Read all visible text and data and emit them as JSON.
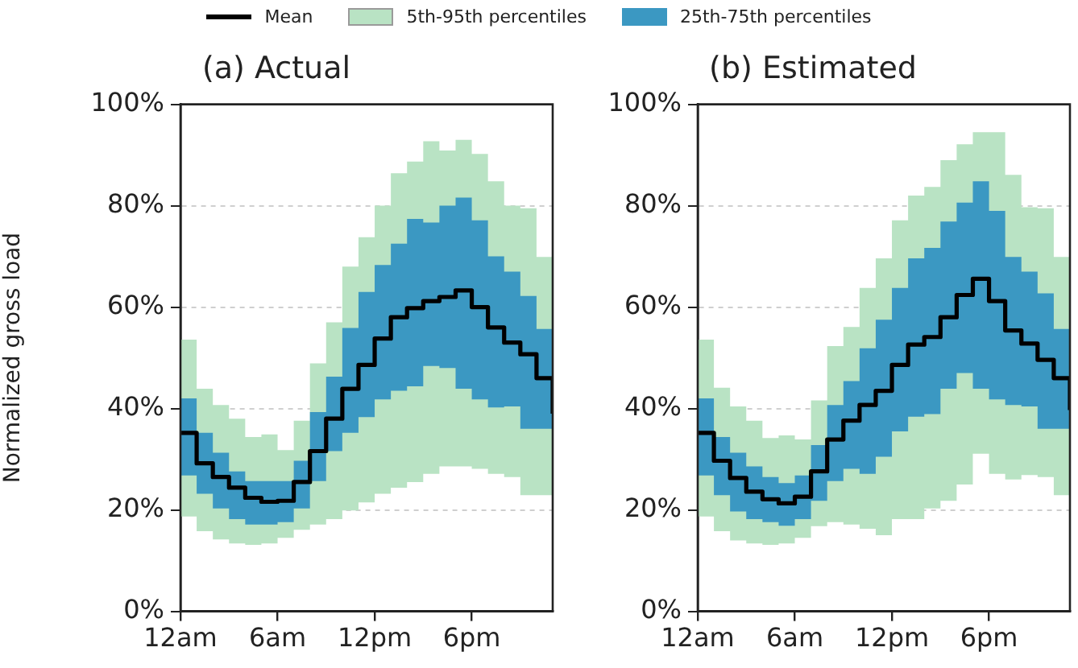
{
  "chart_data": [
    {
      "type": "step",
      "title": "(a) Actual",
      "ylabel": "Normalized gross load",
      "legend": "top",
      "grid": "y",
      "x": [
        "--01-01T00:00",
        "--01-01T01:00",
        "--01-01T02:00",
        "--01-01T03:00",
        "--01-01T04:00",
        "--01-01T05:00",
        "--01-01T06:00",
        "--01-01T07:00",
        "--01-01T08:00",
        "--01-01T09:00",
        "--01-01T10:00",
        "--01-01T11:00",
        "--01-01T12:00",
        "--01-01T13:00",
        "--01-01T14:00",
        "--01-01T15:00",
        "--01-01T16:00",
        "--01-01T17:00",
        "--01-01T18:00",
        "--01-01T19:00",
        "--01-01T20:00",
        "--01-01T21:00",
        "--01-01T22:00",
        "--01-01T23:00"
      ],
      "xlim": [
        "--01-01T00:00",
        "--01-01T23:00"
      ],
      "xticks": [
        {
          "value": "--01-01T00:00",
          "label": "12am"
        },
        {
          "value": "--01-01T06:00",
          "label": "6am"
        },
        {
          "value": "--01-01T12:00",
          "label": "12pm"
        },
        {
          "value": "--01-01T18:00",
          "label": "6pm"
        }
      ],
      "ylim": [
        0,
        100
      ],
      "yticks": [
        {
          "value": 0,
          "label": "0%"
        },
        {
          "value": 20,
          "label": "20%"
        },
        {
          "value": 40,
          "label": "40%"
        },
        {
          "value": 60,
          "label": "60%"
        },
        {
          "value": 80,
          "label": "80%"
        },
        {
          "value": 100,
          "label": "100%"
        }
      ],
      "series": [
        {
          "name": "5th-95th percentiles",
          "type": "area",
          "color": "#b9e3c4",
          "values": [
            null,
            null,
            null,
            null,
            null,
            null,
            null,
            null,
            null,
            null,
            null,
            null,
            null,
            null,
            null,
            null,
            null,
            null,
            null,
            null,
            null,
            null,
            null,
            null
          ],
          "lower": [
            18.7,
            15.8,
            14.2,
            13.4,
            13.1,
            13.4,
            14.5,
            16.1,
            17.1,
            18.2,
            19.9,
            21.5,
            23.2,
            24.4,
            25.5,
            27.1,
            28.6,
            28.6,
            28.1,
            27.1,
            26.5,
            22.9,
            22.9,
            22.9
          ],
          "upper": [
            53.6,
            43.9,
            40.7,
            38,
            34.4,
            34.9,
            31.8,
            37.6,
            48.9,
            57,
            68,
            73.8,
            80,
            86.4,
            88.7,
            92.7,
            90.9,
            93,
            90.2,
            84.8,
            80,
            79.5,
            69.9,
            69.9
          ]
        },
        {
          "name": "25th-75th percentiles",
          "type": "area",
          "color": "#3b98c2",
          "values": [
            null,
            null,
            null,
            null,
            null,
            null,
            null,
            null,
            null,
            null,
            null,
            null,
            null,
            null,
            null,
            null,
            null,
            null,
            null,
            null,
            null,
            null,
            null,
            null
          ],
          "lower": [
            26.8,
            23.2,
            20.3,
            18.2,
            17.1,
            17.1,
            17.6,
            20.3,
            25.7,
            31.6,
            35.2,
            38.3,
            41.8,
            43.5,
            44.4,
            48.4,
            48,
            43.9,
            41.8,
            40.2,
            40.4,
            36,
            36,
            36
          ],
          "upper": [
            42,
            35.2,
            31.3,
            27.6,
            25.7,
            25.7,
            25.7,
            29.7,
            39.3,
            46.3,
            55.9,
            63,
            68.3,
            72.5,
            77.4,
            76.7,
            80,
            81.6,
            77.1,
            70,
            67,
            62.2,
            55.7,
            55.7
          ]
        },
        {
          "name": "Mean",
          "color": "#000000",
          "values": [
            35.2,
            29.2,
            26.5,
            24.4,
            22.4,
            21.6,
            21.8,
            25.5,
            31.6,
            38,
            43.9,
            48.6,
            53.8,
            58,
            59.8,
            61.2,
            62,
            63.3,
            60,
            56,
            53,
            50.7,
            46,
            39
          ]
        }
      ]
    },
    {
      "type": "step",
      "title": "(b) Estimated",
      "grid": "y",
      "x": [
        "--01-01T00:00",
        "--01-01T01:00",
        "--01-01T02:00",
        "--01-01T03:00",
        "--01-01T04:00",
        "--01-01T05:00",
        "--01-01T06:00",
        "--01-01T07:00",
        "--01-01T08:00",
        "--01-01T09:00",
        "--01-01T10:00",
        "--01-01T11:00",
        "--01-01T12:00",
        "--01-01T13:00",
        "--01-01T14:00",
        "--01-01T15:00",
        "--01-01T16:00",
        "--01-01T17:00",
        "--01-01T18:00",
        "--01-01T19:00",
        "--01-01T20:00",
        "--01-01T21:00",
        "--01-01T22:00",
        "--01-01T23:00"
      ],
      "xlim": [
        "--01-01T00:00",
        "--01-01T23:00"
      ],
      "xticks": [
        {
          "value": "--01-01T00:00",
          "label": "12am"
        },
        {
          "value": "--01-01T06:00",
          "label": "6am"
        },
        {
          "value": "--01-01T12:00",
          "label": "12pm"
        },
        {
          "value": "--01-01T18:00",
          "label": "6pm"
        }
      ],
      "ylim": [
        0,
        100
      ],
      "yticks": [
        {
          "value": 0,
          "label": "0%"
        },
        {
          "value": 20,
          "label": "20%"
        },
        {
          "value": 40,
          "label": "40%"
        },
        {
          "value": 60,
          "label": "60%"
        },
        {
          "value": 80,
          "label": "80%"
        },
        {
          "value": 100,
          "label": "100%"
        }
      ],
      "series": [
        {
          "type": "area",
          "color": "#b9e3c4",
          "values": [
            null,
            null,
            null,
            null,
            null,
            null,
            null,
            null,
            null,
            null,
            null,
            null,
            null,
            null,
            null,
            null,
            null,
            null,
            null,
            null,
            null,
            null,
            null,
            null
          ],
          "lower": [
            18.7,
            15.8,
            14,
            13.4,
            13.1,
            13.4,
            14.5,
            16.8,
            17.6,
            17.1,
            16.3,
            15,
            18.2,
            18.2,
            20.3,
            21.8,
            25,
            31.1,
            27.1,
            26,
            26.9,
            26.5,
            22.9,
            22.9
          ],
          "upper": [
            53.6,
            44.1,
            40.4,
            37.6,
            34.2,
            34.7,
            33.9,
            41.6,
            52.3,
            56.1,
            63.8,
            69.6,
            77.1,
            82,
            83.7,
            89,
            92.1,
            94.5,
            94.5,
            86.1,
            79.7,
            79.5,
            69.9,
            69.9
          ]
        },
        {
          "type": "area",
          "color": "#3b98c2",
          "values": [
            null,
            null,
            null,
            null,
            null,
            null,
            null,
            null,
            null,
            null,
            null,
            null,
            null,
            null,
            null,
            null,
            null,
            null,
            null,
            null,
            null,
            null,
            null,
            null
          ],
          "lower": [
            26.8,
            22.9,
            19.7,
            18.2,
            17.6,
            16.9,
            18.2,
            21.8,
            25.7,
            28.1,
            27.1,
            30.5,
            35.5,
            38.4,
            38.9,
            43.9,
            47,
            43.9,
            41.8,
            40.7,
            40.4,
            36,
            36,
            36
          ],
          "upper": [
            42,
            34.4,
            31.3,
            28.6,
            26.5,
            25.3,
            26.8,
            32.8,
            40.7,
            45.4,
            51.9,
            57.5,
            63.8,
            69.6,
            71.7,
            76.9,
            80.6,
            84.8,
            79,
            69.9,
            67,
            62.7,
            55.7,
            55.7
          ]
        },
        {
          "color": "#000000",
          "values": [
            35.2,
            29.7,
            26.3,
            23.6,
            22.1,
            21.3,
            22.6,
            27.6,
            33.9,
            37.6,
            40.7,
            43.5,
            48.6,
            52.6,
            54.1,
            58,
            62.4,
            65.6,
            61.2,
            55.4,
            52.8,
            49.6,
            46,
            39.7
          ]
        }
      ]
    }
  ]
}
